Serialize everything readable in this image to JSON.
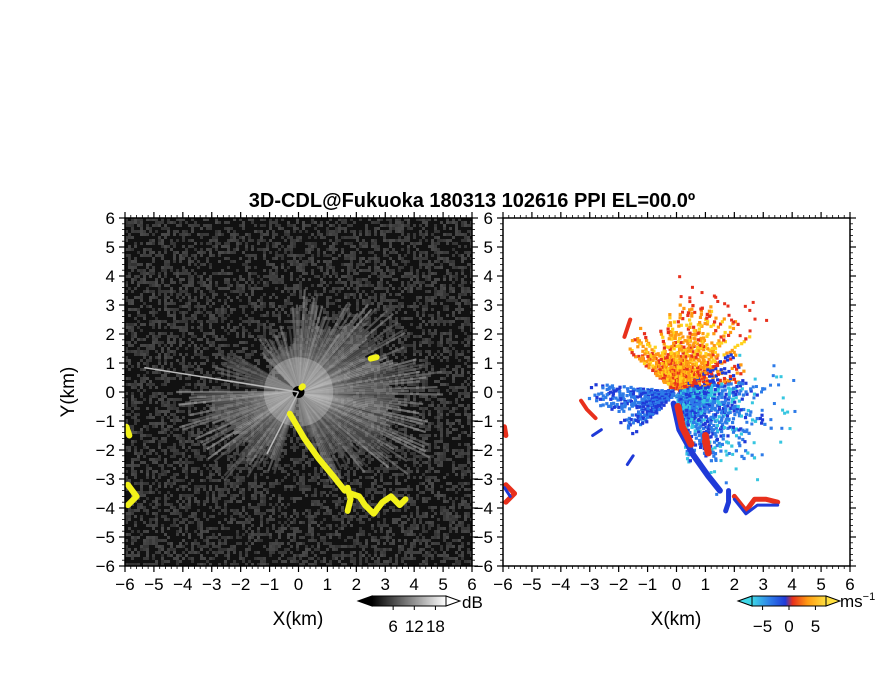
{
  "chart_data": {
    "title": "3D-CDL@Fukuoka 180313 102616 PPI EL=00.0º",
    "panels": [
      {
        "type": "heatmap",
        "quantity": "echo intensity",
        "xlabel": "X(km)",
        "ylabel": "Y(km)",
        "xlim": [
          -6,
          6
        ],
        "ylim": [
          -6,
          6
        ],
        "xticks": [
          -6,
          -5,
          -4,
          -3,
          -2,
          -1,
          0,
          1,
          2,
          3,
          4,
          5,
          6
        ],
        "yticks": [
          -6,
          -5,
          -4,
          -3,
          -2,
          -1,
          0,
          1,
          2,
          3,
          4,
          5,
          6
        ],
        "colormap": "grayscale",
        "colorbar": {
          "unit": "dB",
          "ticks": [
            6,
            12,
            18
          ],
          "range": [
            0,
            21
          ]
        },
        "background": "#111111",
        "highlight_color": "#f2f21a"
      },
      {
        "type": "heatmap",
        "quantity": "radial velocity",
        "xlabel": "X(km)",
        "xlim": [
          -6,
          6
        ],
        "ylim": [
          -6,
          6
        ],
        "xticks": [
          -6,
          -5,
          -4,
          -3,
          -2,
          -1,
          0,
          1,
          2,
          3,
          4,
          5,
          6
        ],
        "yticks": [
          -6,
          -5,
          -4,
          -3,
          -2,
          -1,
          0,
          1,
          2,
          3,
          4,
          5,
          6
        ],
        "colormap": "diverging blue-orange",
        "colorbar": {
          "unit": "ms",
          "unit_exp": "−1",
          "ticks": [
            -5,
            0,
            5
          ],
          "range": [
            -7,
            7
          ]
        },
        "background": "#ffffff",
        "colors": {
          "strong_negative": "#1f3ad8",
          "negative": "#2d7be8",
          "weak_negative": "#36c6e0",
          "weak_positive": "#ffd21c",
          "positive": "#ff9a12",
          "strong_positive": "#e8301c"
        }
      }
    ]
  }
}
